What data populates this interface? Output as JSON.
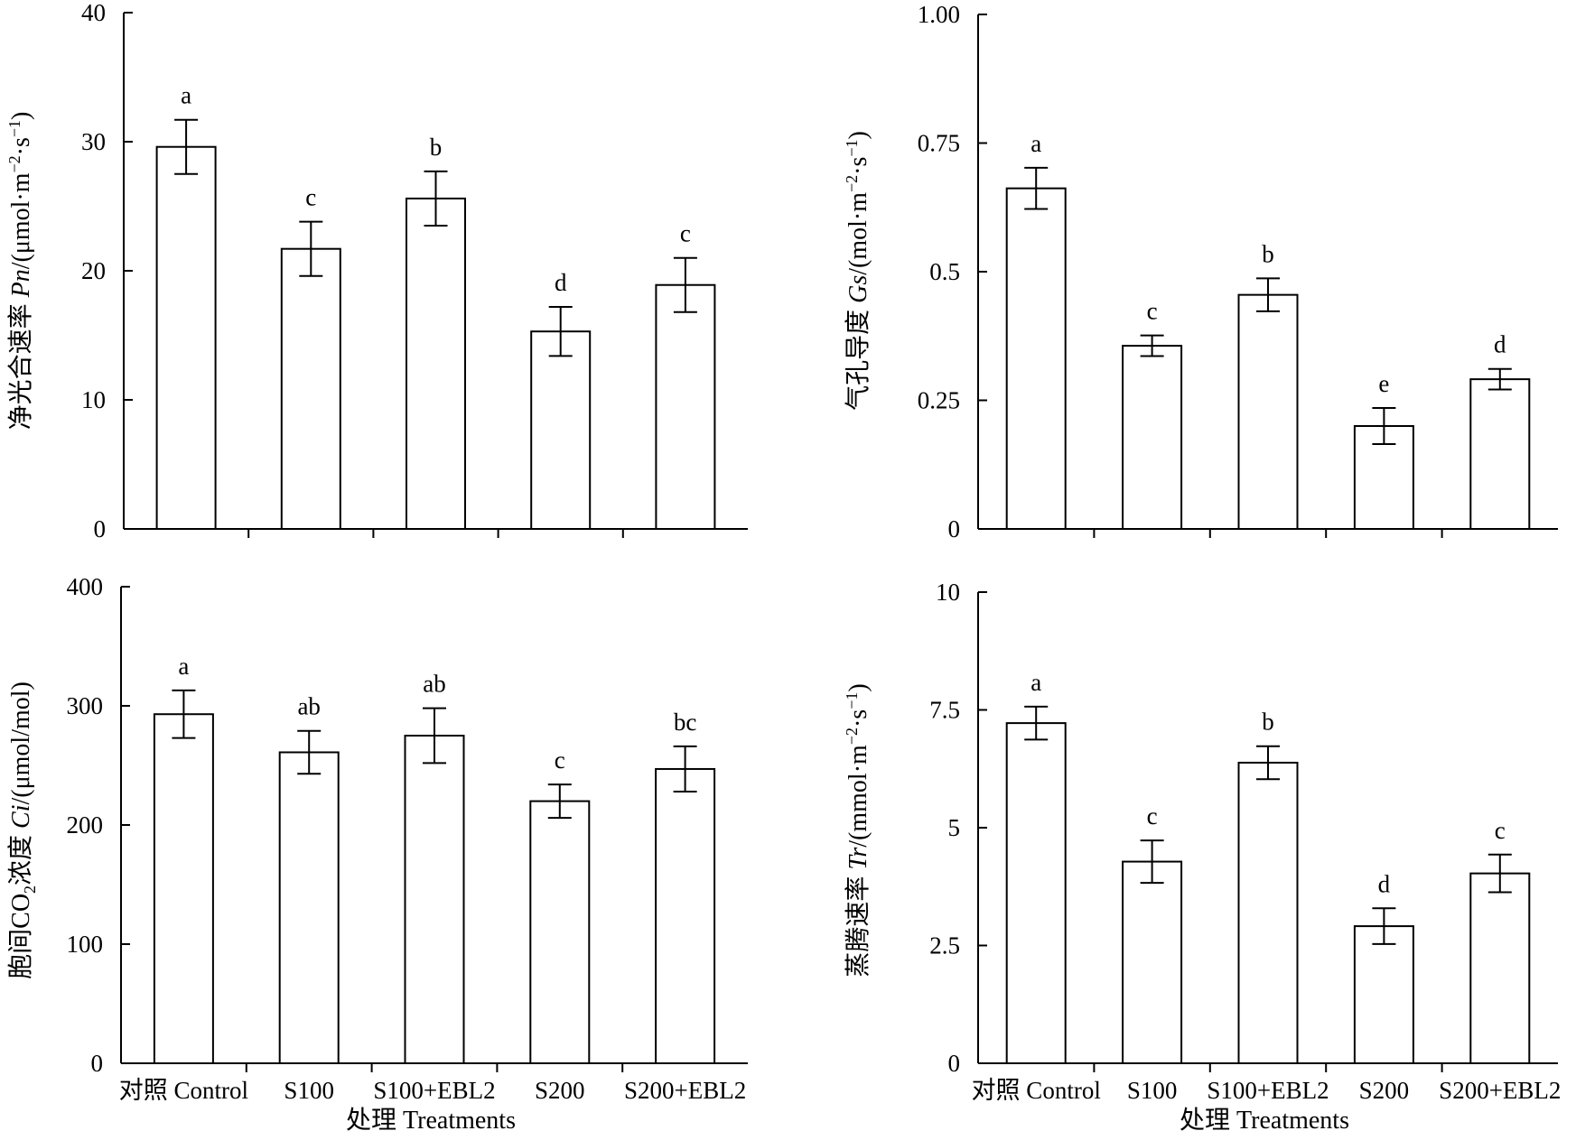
{
  "chart_data": [
    {
      "type": "bar",
      "categories": [
        "对照 Control",
        "S100",
        "S100+EBL2",
        "S200",
        "S200+EBL2"
      ],
      "ylabel_parts": [
        "净光合速率 ",
        "Pn",
        "/(μmol·m",
        "−2",
        "·s",
        "−1",
        ")"
      ],
      "xlabel": "",
      "ylim": [
        0,
        40
      ],
      "yticks": [
        "0",
        "10",
        "20",
        "30",
        "40"
      ],
      "tick_values": [
        0,
        10,
        20,
        30,
        40
      ],
      "values": [
        29.6,
        21.7,
        25.6,
        15.3,
        18.9
      ],
      "errors": [
        2.1,
        2.1,
        2.1,
        1.9,
        2.1
      ],
      "letters": [
        "a",
        "c",
        "b",
        "d",
        "c"
      ],
      "show_category_labels": false
    },
    {
      "type": "bar",
      "categories": [
        "对照 Control",
        "S100",
        "S100+EBL2",
        "S200",
        "S200+EBL2"
      ],
      "ylabel_parts": [
        "气孔导度 ",
        "Gs",
        "/(mol·m",
        "−2",
        "·s",
        "−1",
        ")"
      ],
      "xlabel": "",
      "ylim": [
        0,
        1.0
      ],
      "yticks": [
        "0",
        "0.25",
        "0.5",
        "0.75",
        "1.00"
      ],
      "tick_values": [
        0,
        0.25,
        0.5,
        0.75,
        1.0
      ],
      "values": [
        0.662,
        0.356,
        0.455,
        0.2,
        0.291
      ],
      "errors": [
        0.04,
        0.02,
        0.032,
        0.035,
        0.02
      ],
      "letters": [
        "a",
        "c",
        "b",
        "e",
        "d"
      ],
      "show_category_labels": false
    },
    {
      "type": "bar",
      "categories": [
        "对照 Control",
        "S100",
        "S100+EBL2",
        "S200",
        "S200+EBL2"
      ],
      "ylabel_parts": [
        "胞间CO",
        "2",
        "浓度 ",
        "Ci",
        "/(μmol/mol)"
      ],
      "xlabel": "处理 Treatments",
      "ylim": [
        0,
        400
      ],
      "yticks": [
        "0",
        "100",
        "200",
        "300",
        "400"
      ],
      "tick_values": [
        0,
        100,
        200,
        300,
        400
      ],
      "values": [
        293,
        261,
        275,
        220,
        247
      ],
      "errors": [
        20,
        18,
        23,
        14,
        19
      ],
      "letters": [
        "a",
        "ab",
        "ab",
        "c",
        "bc"
      ],
      "show_category_labels": true
    },
    {
      "type": "bar",
      "categories": [
        "对照 Control",
        "S100",
        "S100+EBL2",
        "S200",
        "S200+EBL2"
      ],
      "ylabel_parts": [
        "蒸腾速率 ",
        "Tr",
        "/(mmol·m",
        "−2",
        "·s",
        "−1",
        ")"
      ],
      "xlabel": "处理 Treatments",
      "ylim": [
        0,
        10
      ],
      "yticks": [
        "0",
        "2.5",
        "5",
        "7.5",
        "10"
      ],
      "tick_values": [
        0,
        2.5,
        5,
        7.5,
        10
      ],
      "values": [
        7.22,
        4.28,
        6.38,
        2.91,
        4.03
      ],
      "errors": [
        0.35,
        0.45,
        0.35,
        0.38,
        0.4
      ],
      "letters": [
        "a",
        "c",
        "b",
        "d",
        "c"
      ],
      "show_category_labels": true
    }
  ]
}
